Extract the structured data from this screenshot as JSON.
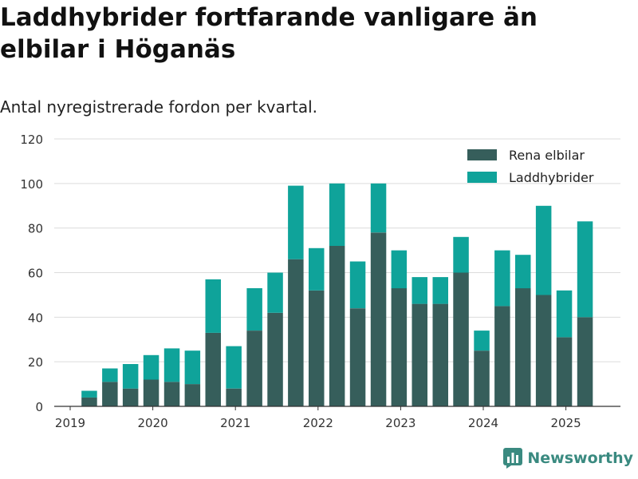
{
  "header": {
    "title": "Laddhybrider fortfarande vanligare än elbilar i Höganäs",
    "subtitle": "Antal nyregistrerade fordon per kvartal."
  },
  "brand": {
    "label": "Newsworthy",
    "icon": "chart-logo-icon",
    "color": "#3a8a80"
  },
  "chart_data": {
    "type": "bar",
    "stacked": true,
    "categories": [
      "2019Q1",
      "2019Q2",
      "2019Q3",
      "2019Q4",
      "2020Q1",
      "2020Q2",
      "2020Q3",
      "2020Q4",
      "2021Q1",
      "2021Q2",
      "2021Q3",
      "2021Q4",
      "2022Q1",
      "2022Q2",
      "2022Q3",
      "2022Q4",
      "2023Q1",
      "2023Q2",
      "2023Q3",
      "2023Q4",
      "2024Q1",
      "2024Q2",
      "2024Q3",
      "2024Q4",
      "2025Q1",
      "2025Q2"
    ],
    "series": [
      {
        "name": "Rena elbilar",
        "color": "#365e5b",
        "values": [
          0,
          4,
          11,
          8,
          12,
          11,
          10,
          33,
          8,
          34,
          42,
          66,
          52,
          72,
          44,
          78,
          53,
          46,
          46,
          60,
          25,
          45,
          53,
          50,
          31,
          40
        ]
      },
      {
        "name": "Laddhybrider",
        "color": "#0fa39a",
        "values": [
          0,
          3,
          6,
          11,
          11,
          15,
          15,
          24,
          19,
          19,
          18,
          33,
          19,
          28,
          21,
          22,
          17,
          12,
          12,
          16,
          9,
          25,
          15,
          40,
          21,
          43
        ]
      }
    ],
    "x_tick_labels": [
      "2019",
      "2020",
      "2021",
      "2022",
      "2023",
      "2024",
      "2025"
    ],
    "y_ticks": [
      0,
      20,
      40,
      60,
      80,
      100,
      120
    ],
    "ylim": [
      0,
      120
    ],
    "xlabel": "",
    "ylabel": "",
    "grid": true,
    "legend_position": "top-right"
  }
}
